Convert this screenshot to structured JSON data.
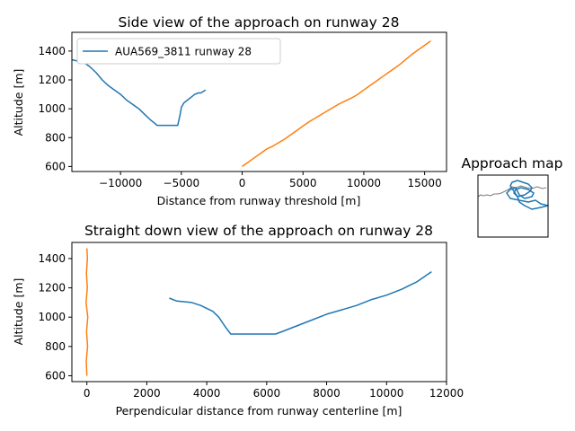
{
  "chart_data": [
    {
      "type": "line",
      "title": "Side view of the approach on runway 28",
      "xlabel": "Distance from runway threshold [m]",
      "ylabel": "Altitude [m]",
      "xlim": [
        -14000,
        16800
      ],
      "ylim": [
        565,
        1530
      ],
      "xticks": [
        -10000,
        -5000,
        0,
        5000,
        10000,
        15000
      ],
      "xtick_labels": [
        "−10000",
        "−5000",
        "0",
        "5000",
        "10000",
        "15000"
      ],
      "yticks": [
        600,
        800,
        1000,
        1200,
        1400
      ],
      "ytick_labels": [
        "600",
        "800",
        "1000",
        "1200",
        "1400"
      ],
      "grid": false,
      "legend_position": "upper-left",
      "series": [
        {
          "name": "AUA569_3811 runway 28",
          "color": "#1f77b4",
          "x": [
            -14000,
            -13000,
            -12500,
            -12000,
            -11500,
            -11000,
            -10500,
            -10000,
            -9500,
            -9000,
            -8500,
            -8000,
            -7500,
            -7200,
            -7000,
            -6000,
            -5300,
            -5100,
            -5000,
            -4800,
            -4500,
            -4200,
            -3900,
            -3600,
            -3400,
            -3200,
            -3000
          ],
          "y": [
            1340,
            1320,
            1290,
            1250,
            1200,
            1160,
            1130,
            1100,
            1060,
            1030,
            1000,
            960,
            920,
            900,
            885,
            885,
            885,
            960,
            1010,
            1040,
            1060,
            1080,
            1100,
            1110,
            1110,
            1120,
            1130
          ]
        },
        {
          "name": "",
          "color": "#ff7f0e",
          "x": [
            0,
            500,
            1000,
            1500,
            2000,
            2500,
            3000,
            3500,
            4000,
            4500,
            5000,
            5500,
            6000,
            6500,
            7000,
            7500,
            8000,
            8500,
            9000,
            9500,
            10000,
            10500,
            11000,
            11500,
            12000,
            12500,
            13000,
            13500,
            14000,
            14500,
            15000,
            15500
          ],
          "y": [
            600,
            630,
            660,
            690,
            720,
            740,
            765,
            790,
            820,
            850,
            880,
            910,
            935,
            960,
            985,
            1010,
            1035,
            1055,
            1075,
            1100,
            1130,
            1160,
            1190,
            1220,
            1250,
            1280,
            1310,
            1345,
            1380,
            1410,
            1440,
            1470
          ]
        }
      ]
    },
    {
      "type": "line",
      "title": "Straight down view of the approach on runway 28",
      "xlabel": "Perpendicular distance from runway centerline [m]",
      "ylabel": "Altitude [m]",
      "xlim": [
        -500,
        12000
      ],
      "ylim": [
        560,
        1510
      ],
      "xticks": [
        0,
        2000,
        4000,
        6000,
        8000,
        10000,
        12000
      ],
      "xtick_labels": [
        "0",
        "2000",
        "4000",
        "6000",
        "8000",
        "10000",
        "12000"
      ],
      "yticks": [
        600,
        800,
        1000,
        1200,
        1400
      ],
      "ytick_labels": [
        "600",
        "800",
        "1000",
        "1200",
        "1400"
      ],
      "grid": false,
      "series": [
        {
          "name": "",
          "color": "#1f77b4",
          "x": [
            2750,
            3000,
            3500,
            3800,
            4000,
            4200,
            4400,
            4600,
            4800,
            5500,
            6300,
            6500,
            7000,
            7500,
            8000,
            8500,
            9000,
            9500,
            10000,
            10500,
            11000,
            11500
          ],
          "y": [
            1130,
            1110,
            1100,
            1080,
            1060,
            1040,
            1000,
            940,
            885,
            885,
            885,
            900,
            940,
            980,
            1020,
            1050,
            1080,
            1120,
            1150,
            1190,
            1240,
            1310
          ]
        },
        {
          "name": "",
          "color": "#ff7f0e",
          "x": [
            0,
            -20,
            25,
            -10,
            30,
            -25,
            15,
            -15,
            20,
            0
          ],
          "y": [
            600,
            700,
            800,
            900,
            1000,
            1100,
            1200,
            1300,
            1400,
            1470
          ]
        }
      ]
    },
    {
      "type": "line",
      "title": "Approach map",
      "grid": false,
      "series": [
        {
          "name": "",
          "color": "#7f7f7f",
          "x": [
            0,
            3,
            6,
            10,
            14,
            18,
            22,
            26,
            30,
            34,
            38,
            42,
            48,
            54,
            60,
            66,
            72,
            76
          ],
          "y": [
            24,
            22,
            23,
            22,
            23,
            21,
            21,
            20,
            18,
            16,
            13,
            14,
            12,
            14,
            15,
            13,
            15,
            14
          ]
        },
        {
          "name": "",
          "color": "#1f77b4",
          "x": [
            42,
            36,
            32,
            36,
            46,
            56,
            64,
            70,
            78,
            70,
            60,
            52,
            46,
            44,
            40,
            36,
            38,
            44,
            50,
            56,
            60,
            58,
            52,
            44,
            40,
            42,
            48,
            56,
            62,
            60,
            52,
            46,
            42
          ],
          "y": [
            14,
            16,
            20,
            26,
            28,
            30,
            28,
            32,
            34,
            36,
            38,
            34,
            30,
            24,
            18,
            12,
            8,
            6,
            8,
            10,
            14,
            18,
            22,
            24,
            20,
            16,
            14,
            16,
            20,
            24,
            26,
            22,
            14
          ]
        }
      ]
    }
  ]
}
